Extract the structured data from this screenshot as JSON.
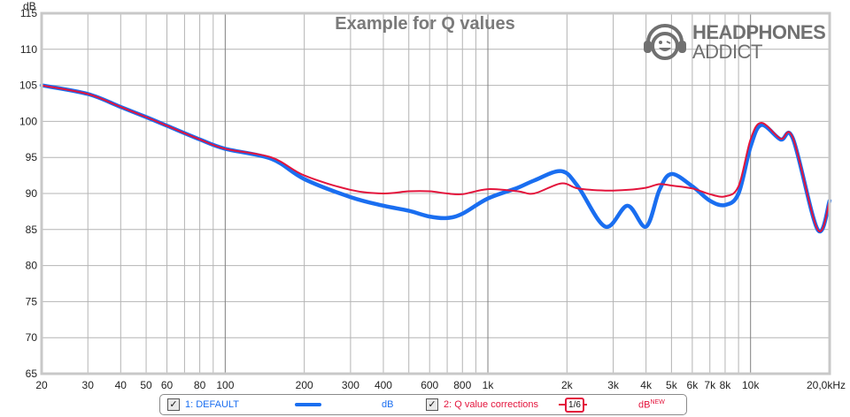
{
  "chart_data": {
    "type": "line",
    "title": "Example for Q values",
    "xlabel": "Hz",
    "ylabel": "dB",
    "x_scale": "log",
    "xlim": [
      20,
      20000
    ],
    "ylim": [
      65,
      115
    ],
    "grid": true,
    "x_ticks": [
      {
        "value": 20,
        "label": "20"
      },
      {
        "value": 30,
        "label": "30"
      },
      {
        "value": 40,
        "label": "40"
      },
      {
        "value": 50,
        "label": "50"
      },
      {
        "value": 60,
        "label": "60"
      },
      {
        "value": 80,
        "label": "80"
      },
      {
        "value": 100,
        "label": "100"
      },
      {
        "value": 200,
        "label": "200"
      },
      {
        "value": 300,
        "label": "300"
      },
      {
        "value": 400,
        "label": "400"
      },
      {
        "value": 600,
        "label": "600"
      },
      {
        "value": 800,
        "label": "800"
      },
      {
        "value": 1000,
        "label": "1k"
      },
      {
        "value": 2000,
        "label": "2k"
      },
      {
        "value": 3000,
        "label": "3k"
      },
      {
        "value": 4000,
        "label": "4k"
      },
      {
        "value": 5000,
        "label": "5k"
      },
      {
        "value": 6000,
        "label": "6k"
      },
      {
        "value": 7000,
        "label": "7k"
      },
      {
        "value": 8000,
        "label": "8k"
      },
      {
        "value": 10000,
        "label": "10k"
      },
      {
        "value": 20000,
        "label": "20,0kHz"
      }
    ],
    "x_minor_grid": [
      20,
      30,
      40,
      50,
      60,
      70,
      80,
      90,
      200,
      300,
      400,
      500,
      600,
      700,
      800,
      900,
      2000,
      3000,
      4000,
      5000,
      6000,
      7000,
      8000,
      9000,
      20000
    ],
    "x_major_grid": [
      100,
      1000,
      10000
    ],
    "y_ticks": [
      65,
      70,
      75,
      80,
      85,
      90,
      95,
      100,
      105,
      110,
      115
    ],
    "x": [
      20,
      30,
      40,
      50,
      60,
      80,
      100,
      150,
      200,
      300,
      400,
      500,
      600,
      700,
      800,
      1000,
      1300,
      1500,
      1900,
      2200,
      2800,
      3400,
      4000,
      4500,
      5000,
      6000,
      7000,
      8000,
      9000,
      10000,
      11000,
      13000,
      14500,
      18000,
      20000
    ],
    "series": [
      {
        "name": "1: DEFAULT",
        "unit": "dB",
        "color": "#1a6ef0",
        "values": [
          105,
          103.8,
          102,
          100.6,
          99.4,
          97.5,
          96.2,
          94.8,
          92,
          89.5,
          88.3,
          87.6,
          86.8,
          86.6,
          87.2,
          89.3,
          90.8,
          91.8,
          93.1,
          91,
          85.4,
          88.3,
          85.4,
          90.5,
          92.7,
          91,
          89,
          88.4,
          90,
          96.5,
          99.5,
          97.5,
          97.6,
          85,
          89
        ]
      },
      {
        "name": "2: Q value corrections",
        "unit": "dBNEW",
        "color": "#e3143c",
        "smoothing": "1/6",
        "values": [
          105,
          103.8,
          102,
          100.6,
          99.4,
          97.5,
          96.2,
          95,
          92.5,
          90.5,
          90,
          90.3,
          90.3,
          90,
          89.9,
          90.6,
          90.3,
          90,
          91.4,
          90.7,
          90.4,
          90.5,
          90.8,
          91.3,
          91.1,
          90.7,
          89.9,
          89.6,
          91,
          97.5,
          99.8,
          97.6,
          97.7,
          85,
          89
        ]
      }
    ],
    "legend_position": "bottom"
  },
  "axis": {
    "y_unit": "dB"
  },
  "logo": {
    "line1": "HEADPHONES",
    "line2": "ADDICT"
  },
  "legend": {
    "items": [
      {
        "checked": true,
        "check_glyph": "✓",
        "label": "1: DEFAULT",
        "unit": "dB",
        "color": "#1a6ef0"
      },
      {
        "checked": true,
        "check_glyph": "✓",
        "label": "2: Q value corrections",
        "unit": "dB",
        "unit_sup": "NEW",
        "smoothing": "1/6",
        "color": "#e3143c"
      }
    ]
  },
  "colors": {
    "grid": "#b4b4b4",
    "grid_major": "#808080",
    "frame": "#c8c8c8",
    "title": "#7a7a7a"
  }
}
